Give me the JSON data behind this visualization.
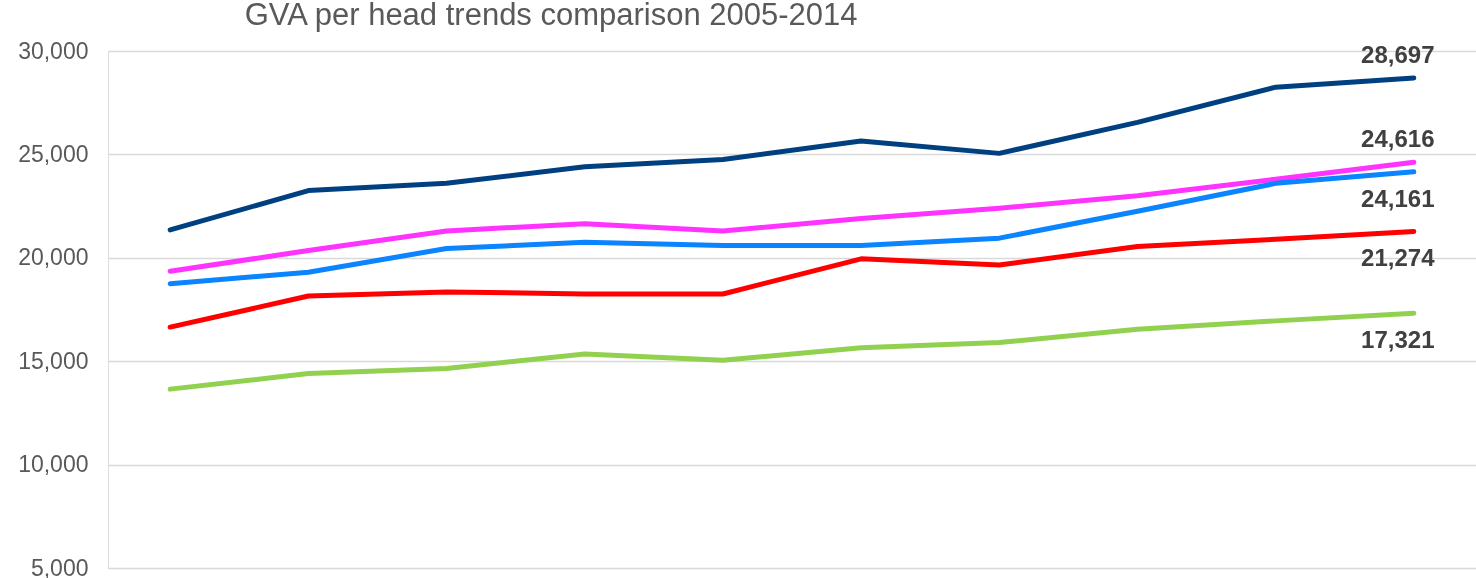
{
  "chart_data": {
    "type": "line",
    "title": "GVA per head trends comparison  2005-2014",
    "categories": [
      null,
      null,
      null,
      null,
      null,
      null,
      null,
      null,
      null,
      null
    ],
    "series": [
      {
        "color": "#004080",
        "values": [
          21350,
          23250,
          23600,
          24400,
          24750,
          25650,
          25050,
          26550,
          28250,
          28697
        ],
        "value_labels": [
          null,
          null,
          null,
          null,
          null,
          null,
          null,
          null,
          null,
          "28,697"
        ]
      },
      {
        "color": "#ff33ff",
        "values": [
          19350,
          20350,
          21300,
          21650,
          21300,
          21900,
          22400,
          23000,
          23800,
          24616
        ],
        "value_labels": [
          null,
          null,
          null,
          null,
          null,
          null,
          null,
          null,
          null,
          "24,616"
        ]
      },
      {
        "color": "#0a84ff",
        "values": [
          18750,
          19300,
          20450,
          20750,
          20600,
          20600,
          20950,
          22250,
          23600,
          24161
        ],
        "value_labels": [
          null,
          null,
          null,
          null,
          null,
          null,
          null,
          null,
          null,
          "24,161"
        ]
      },
      {
        "color": "#ff0000",
        "values": [
          16650,
          18150,
          18350,
          18250,
          18250,
          19950,
          19650,
          20550,
          20900,
          21274
        ],
        "value_labels": [
          null,
          null,
          null,
          null,
          null,
          null,
          null,
          null,
          null,
          "21,274"
        ]
      },
      {
        "color": "#92d050",
        "values": [
          13650,
          14400,
          14650,
          15350,
          15050,
          15650,
          15900,
          16550,
          16950,
          17321
        ],
        "value_labels": [
          null,
          null,
          null,
          null,
          null,
          null,
          null,
          null,
          null,
          "17,321"
        ]
      }
    ],
    "ylim": [
      5000,
      30000
    ],
    "yticks": [
      {
        "value": 5000,
        "label": "5,000"
      },
      {
        "value": 10000,
        "label": "10,000"
      },
      {
        "value": 15000,
        "label": "15,000"
      },
      {
        "value": 20000,
        "label": "20,000"
      },
      {
        "value": 25000,
        "label": "25,000"
      },
      {
        "value": 30000,
        "label": "30,000"
      }
    ],
    "grid": "y",
    "tick_labels": "y"
  }
}
